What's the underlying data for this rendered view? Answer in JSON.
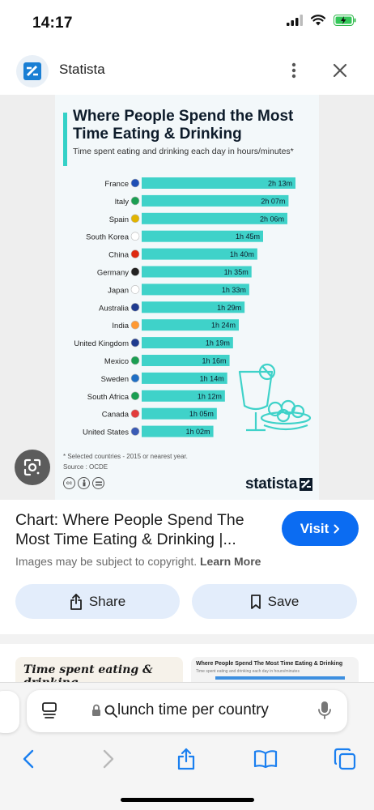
{
  "status_bar": {
    "time": "14:17"
  },
  "header": {
    "site_name": "Statista"
  },
  "infographic": {
    "title": "Where People Spend the Most Time Eating & Drinking",
    "subtitle": "Time spent eating and drinking each day in hours/minutes*",
    "footnote": "* Selected countries - 2015 or nearest year.",
    "source": "Source : OCDE",
    "brand": "statista",
    "license_icons": [
      "cc",
      "by",
      "nd"
    ]
  },
  "chart_data": {
    "type": "bar",
    "orientation": "horizontal",
    "title": "Where People Spend the Most Time Eating & Drinking",
    "subtitle": "Time spent eating and drinking each day in hours/minutes*",
    "categories": [
      "France",
      "Italy",
      "Spain",
      "South Korea",
      "China",
      "Germany",
      "Japan",
      "Australia",
      "India",
      "United Kingdom",
      "Mexico",
      "Sweden",
      "South Africa",
      "Canada",
      "United States"
    ],
    "labels": [
      "2h 13m",
      "2h 07m",
      "2h 06m",
      "1h 45m",
      "1h 40m",
      "1h 35m",
      "1h 33m",
      "1h 29m",
      "1h 24m",
      "1h 19m",
      "1h 16m",
      "1h 14m",
      "1h 12m",
      "1h 05m",
      "1h 02m"
    ],
    "values": [
      133,
      127,
      126,
      105,
      100,
      95,
      93,
      89,
      84,
      79,
      76,
      74,
      72,
      65,
      62
    ],
    "unit": "minutes",
    "color": "#3fd2c9"
  },
  "result": {
    "title": "Chart: Where People Spend The Most Time Eating & Drinking |...",
    "visit_label": "Visit",
    "copyright_text": "Images may be subject to copyright.",
    "learn_more": "Learn More",
    "share_label": "Share",
    "save_label": "Save"
  },
  "related": [
    {
      "title": "Time spent eating & drinking"
    },
    {
      "title": "Where People Spend The Most Time Eating & Drinking",
      "subtitle": "Time spent eating and drinking each day in hours/minutes"
    }
  ],
  "browser": {
    "address_text": "lunch time per country"
  },
  "colors": {
    "accent": "#0b6cf2",
    "bar": "#3fd2c9",
    "soft_button": "#e3edfb"
  }
}
